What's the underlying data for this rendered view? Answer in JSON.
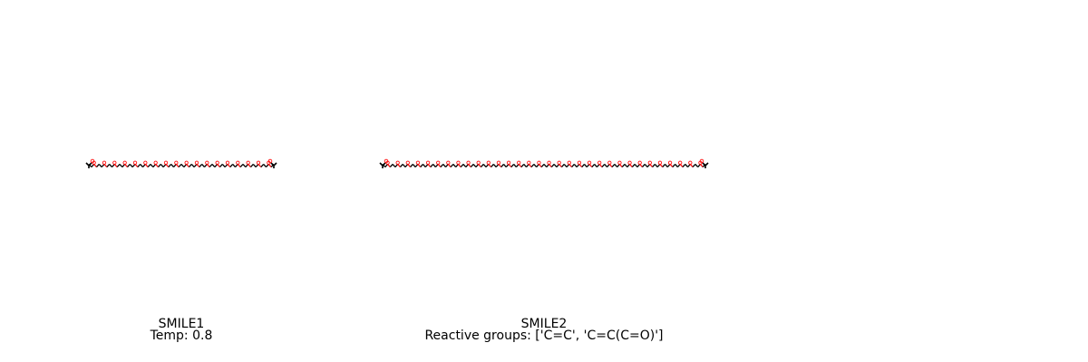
{
  "panels": [
    {
      "id": "smile1",
      "name": "SMILE1",
      "info": "Temp: 0.8",
      "repeat_units": 18,
      "colors": {
        "bond": "#000000",
        "oxygen": "#ff0d0d"
      }
    },
    {
      "id": "smile2",
      "name": "SMILE2",
      "info": "Reactive groups: ['C=C', 'C=C(C=O)']",
      "repeat_units": 32,
      "colors": {
        "bond": "#000000",
        "oxygen": "#ff0d0d"
      }
    }
  ]
}
